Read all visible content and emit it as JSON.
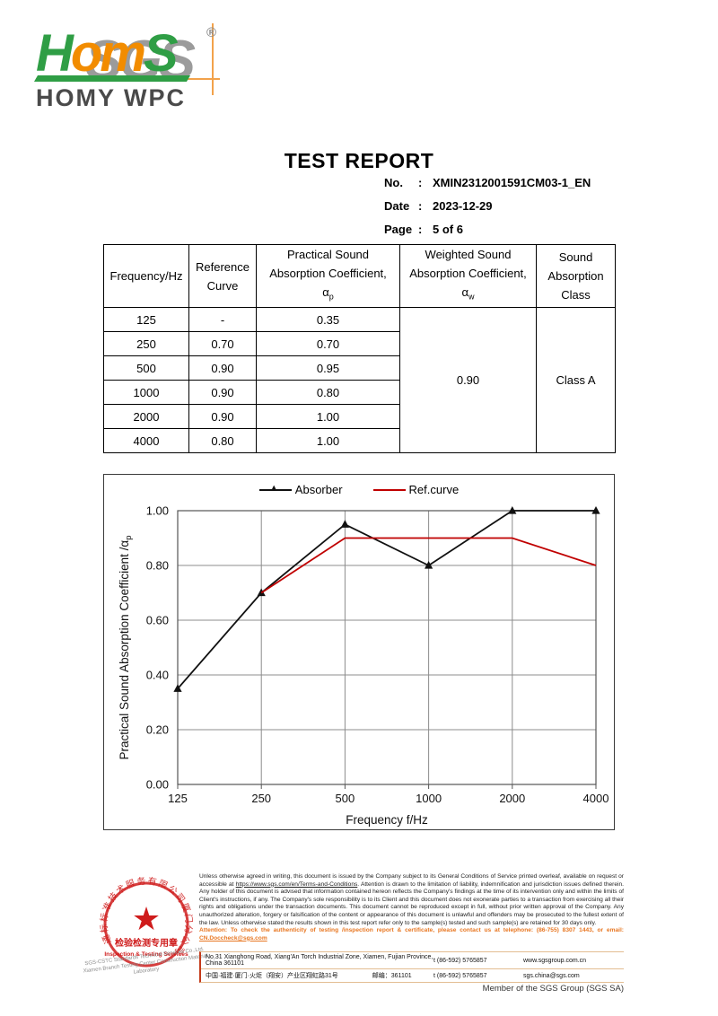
{
  "logo": {
    "sgs_text": "SGS",
    "brand_part1": "H",
    "brand_part2": "om",
    "brand_part3": "S",
    "registered_mark": "®",
    "subtitle": "HOMY WPC",
    "colors": {
      "green": "#2f9e45",
      "orange": "#f28c00",
      "gray": "#9b9b9b"
    }
  },
  "header": {
    "title": "TEST REPORT",
    "meta": [
      {
        "label": "No.",
        "colon": ":",
        "value": "XMIN2312001591CM03-1_EN"
      },
      {
        "label": "Date",
        "colon": ":",
        "value": "2023-12-29"
      },
      {
        "label": "Page",
        "colon": ":",
        "value": "5 of  6"
      }
    ]
  },
  "table": {
    "headers": {
      "frequency": "Frequency/Hz",
      "reference_l1": "Reference",
      "reference_l2": "Curve",
      "practical_l1": "Practical Sound",
      "practical_l2": "Absorption Coefficient,",
      "practical_sym": "α",
      "practical_sub": "p",
      "weighted_l1": "Weighted Sound",
      "weighted_l2": "Absorption Coefficient,",
      "weighted_sym": "α",
      "weighted_sub": "w",
      "class_l1": "Sound",
      "class_l2": "Absorption",
      "class_l3": "Class"
    },
    "rows": [
      {
        "frequency": "125",
        "reference": "-",
        "practical": "0.35"
      },
      {
        "frequency": "250",
        "reference": "0.70",
        "practical": "0.70"
      },
      {
        "frequency": "500",
        "reference": "0.90",
        "practical": "0.95"
      },
      {
        "frequency": "1000",
        "reference": "0.90",
        "practical": "0.80"
      },
      {
        "frequency": "2000",
        "reference": "0.90",
        "practical": "1.00"
      },
      {
        "frequency": "4000",
        "reference": "0.80",
        "practical": "1.00"
      }
    ],
    "weighted_value": "0.90",
    "class_value": "Class A"
  },
  "chart_data": {
    "type": "line",
    "categories": [
      "125",
      "250",
      "500",
      "1000",
      "2000",
      "4000"
    ],
    "series": [
      {
        "name": "Absorber",
        "color": "#111111",
        "marker": "triangle",
        "values": [
          0.35,
          0.7,
          0.95,
          0.8,
          1.0,
          1.0
        ]
      },
      {
        "name": "Ref.curve",
        "color": "#c00000",
        "marker": "none",
        "values": [
          null,
          0.7,
          0.9,
          0.9,
          0.9,
          0.8
        ]
      }
    ],
    "xlabel": "Frequency f/Hz",
    "ylabel": "Practical Sound Absorption Coefficient /α",
    "ylabel_sub": "p",
    "ylim": [
      0,
      1.0
    ],
    "ytick_step": 0.2,
    "grid": true,
    "legend_position": "top-center"
  },
  "footer": {
    "stamp": {
      "ring_text": "通标标准技术服务有限公司厦门分公司",
      "star": "★",
      "line1": "检验检测专用章",
      "line2": "Inspection & Testing Services",
      "color": "#cf1c1c",
      "company_gray_line1": "SGS-CSTC Standards Technical Services Co.,Ltd.",
      "company_gray_line2": "Xiamen Branch Testing Center Construction Material Laboratory"
    },
    "legal_pre": "Unless otherwise agreed in writing, this document is issued by the Company subject to its General Conditions of Service printed overleaf, available on request or accessible at ",
    "legal_link": "https://www.sgs.com/en/Terms-and-Conditions",
    "legal_post": ". Attention is drawn to the limitation of liability, indemnification and jurisdiction issues defined therein. Any holder of this document is advised that information contained hereon reflects the Company's findings at the time of its intervention only and within the limits of Client's instructions, if any. The Company's sole responsibility is to its Client and this document does not exonerate parties to a transaction from exercising all their rights and obligations under the transaction documents. This document cannot be reproduced except in full, without prior written approval of the Company. Any unauthorized alteration, forgery or falsification of the content or appearance of this document is unlawful and offenders may be prosecuted to the fullest extent of the law. Unless otherwise stated the results shown in this test report refer only to the sample(s) tested and such sample(s) are retained for 30 days only.",
    "attention_pre": "Attention: To check the authenticity of testing /inspection report & certificate, please contact us at telephone: (86-755) 8307 1443, or email: ",
    "attention_email": "CN.Doccheck@sgs.com",
    "address_rows": [
      {
        "address": "No.31 Xianghong Road, Xiang'An Torch Industrial Zone, Xiamen, Fujian Province, China  361101",
        "postal": "",
        "phone": "t  (86-592) 5765857",
        "web": "www.sgsgroup.com.cn"
      },
      {
        "address": "中国·福建·厦门·火炬（翔安）产业区翔虹路31号",
        "postal": "邮编：361101",
        "phone": "t  (86-592) 5765857",
        "web": "sgs.china@sgs.com"
      }
    ],
    "member_text": "Member of the SGS Group (SGS SA)"
  }
}
